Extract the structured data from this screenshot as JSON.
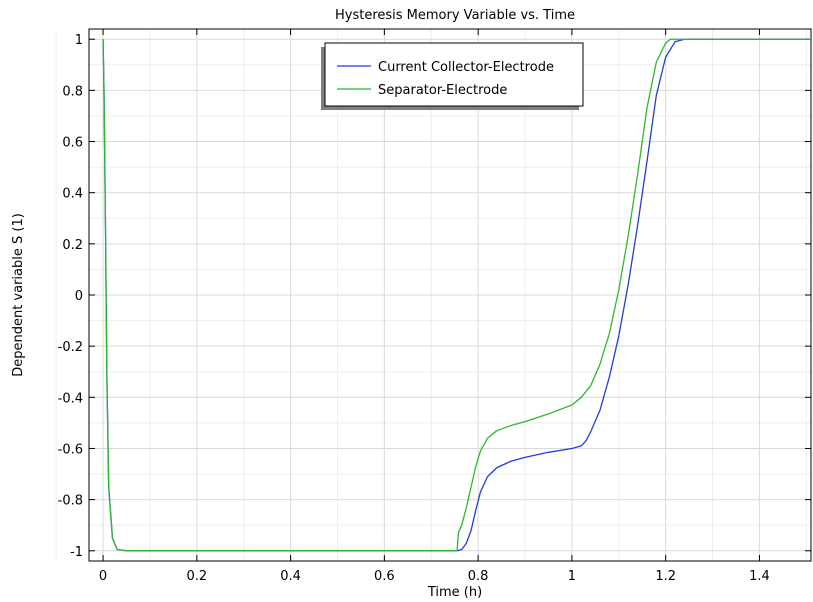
{
  "chart_data": {
    "type": "line",
    "title": "Hysteresis Memory Variable vs. Time",
    "xlabel": "Time (h)",
    "ylabel": "Dependent variable S (1)",
    "xlim": [
      -0.03,
      1.51
    ],
    "ylim": [
      -1.04,
      1.04
    ],
    "x_ticks": [
      "0",
      "0.2",
      "0.4",
      "0.6",
      "0.8",
      "1",
      "1.2",
      "1.4"
    ],
    "x_tick_values": [
      0,
      0.2,
      0.4,
      0.6,
      0.8,
      1.0,
      1.2,
      1.4
    ],
    "y_ticks": [
      "1",
      "0.8",
      "0.6",
      "0.4",
      "0.2",
      "0",
      "-0.2",
      "-0.4",
      "-0.6",
      "-0.8",
      "-1"
    ],
    "y_tick_values": [
      1,
      0.8,
      0.6,
      0.4,
      0.2,
      0,
      -0.2,
      -0.4,
      -0.6,
      -0.8,
      -1
    ],
    "grid": true,
    "legend_position": "top-center",
    "series": [
      {
        "name": "Current Collector-Electrode",
        "color": "#1f3fdb",
        "points": [
          [
            0,
            1
          ],
          [
            0.002,
            0.8
          ],
          [
            0.005,
            0.3
          ],
          [
            0.008,
            -0.3
          ],
          [
            0.012,
            -0.75
          ],
          [
            0.02,
            -0.95
          ],
          [
            0.03,
            -0.995
          ],
          [
            0.05,
            -1
          ],
          [
            0.3,
            -1
          ],
          [
            0.6,
            -1
          ],
          [
            0.755,
            -1
          ],
          [
            0.765,
            -0.995
          ],
          [
            0.775,
            -0.97
          ],
          [
            0.785,
            -0.92
          ],
          [
            0.795,
            -0.84
          ],
          [
            0.805,
            -0.77
          ],
          [
            0.82,
            -0.71
          ],
          [
            0.84,
            -0.675
          ],
          [
            0.87,
            -0.65
          ],
          [
            0.9,
            -0.635
          ],
          [
            0.95,
            -0.615
          ],
          [
            1.0,
            -0.6
          ],
          [
            1.02,
            -0.59
          ],
          [
            1.03,
            -0.57
          ],
          [
            1.04,
            -0.535
          ],
          [
            1.06,
            -0.45
          ],
          [
            1.08,
            -0.32
          ],
          [
            1.1,
            -0.16
          ],
          [
            1.12,
            0.04
          ],
          [
            1.14,
            0.27
          ],
          [
            1.16,
            0.52
          ],
          [
            1.18,
            0.78
          ],
          [
            1.2,
            0.93
          ],
          [
            1.22,
            0.99
          ],
          [
            1.24,
            1
          ],
          [
            1.3,
            1
          ],
          [
            1.51,
            1
          ]
        ]
      },
      {
        "name": "Separator-Electrode",
        "color": "#2fb82f",
        "points": [
          [
            0,
            1
          ],
          [
            0.002,
            0.8
          ],
          [
            0.005,
            0.3
          ],
          [
            0.008,
            -0.3
          ],
          [
            0.012,
            -0.75
          ],
          [
            0.02,
            -0.95
          ],
          [
            0.03,
            -0.995
          ],
          [
            0.05,
            -1
          ],
          [
            0.3,
            -1
          ],
          [
            0.6,
            -1
          ],
          [
            0.755,
            -1
          ],
          [
            0.758,
            -0.93
          ],
          [
            0.765,
            -0.9
          ],
          [
            0.775,
            -0.83
          ],
          [
            0.785,
            -0.75
          ],
          [
            0.795,
            -0.67
          ],
          [
            0.805,
            -0.61
          ],
          [
            0.82,
            -0.56
          ],
          [
            0.84,
            -0.53
          ],
          [
            0.87,
            -0.51
          ],
          [
            0.9,
            -0.495
          ],
          [
            0.95,
            -0.465
          ],
          [
            1.0,
            -0.43
          ],
          [
            1.02,
            -0.4
          ],
          [
            1.04,
            -0.355
          ],
          [
            1.06,
            -0.27
          ],
          [
            1.08,
            -0.15
          ],
          [
            1.1,
            0.02
          ],
          [
            1.12,
            0.23
          ],
          [
            1.14,
            0.47
          ],
          [
            1.16,
            0.73
          ],
          [
            1.18,
            0.91
          ],
          [
            1.2,
            0.985
          ],
          [
            1.21,
            1
          ],
          [
            1.3,
            1
          ],
          [
            1.51,
            1
          ]
        ]
      }
    ]
  }
}
